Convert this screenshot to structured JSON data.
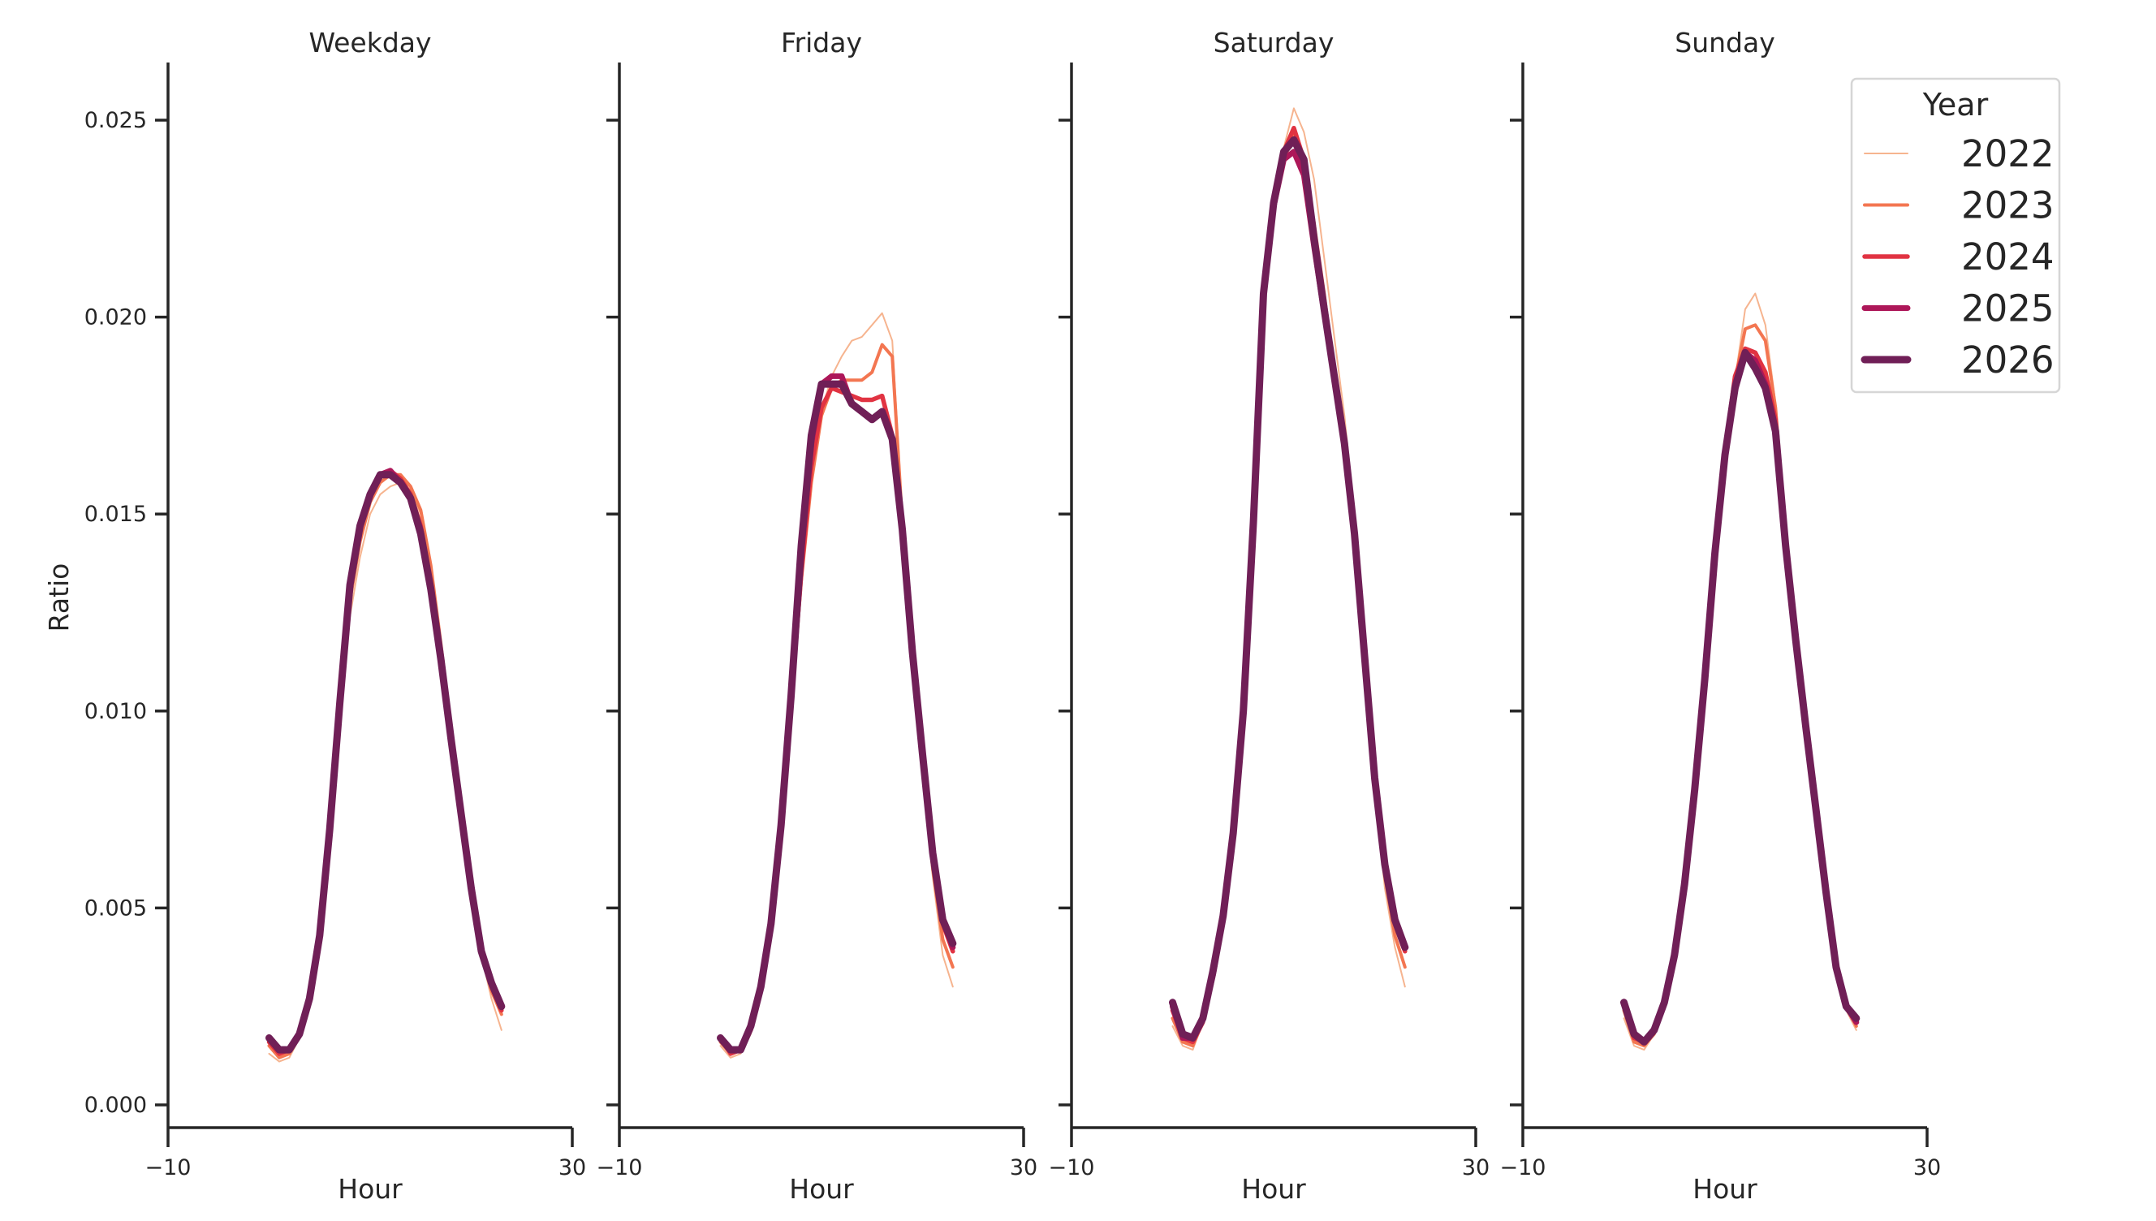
{
  "figure": {
    "ylabel": "Ratio",
    "xlabel": "Hour",
    "legend_title": "Year"
  },
  "legend": {
    "title": "Year",
    "items": [
      {
        "label": "2022",
        "color": "#f6b48f",
        "width": 2
      },
      {
        "label": "2023",
        "color": "#f37651",
        "width": 4
      },
      {
        "label": "2024",
        "color": "#e13342",
        "width": 5.5
      },
      {
        "label": "2025",
        "color": "#ad1759",
        "width": 7
      },
      {
        "label": "2026",
        "color": "#701f57",
        "width": 9
      }
    ]
  },
  "panels": [
    {
      "title": "Weekday"
    },
    {
      "title": "Friday"
    },
    {
      "title": "Saturday"
    },
    {
      "title": "Sunday"
    }
  ],
  "axes": {
    "xticks": [
      "−10",
      "30"
    ],
    "yticks": [
      "0.000",
      "0.005",
      "0.010",
      "0.015",
      "0.020",
      "0.025"
    ]
  },
  "chart_data": {
    "type": "line",
    "title": "",
    "xlabel": "Hour",
    "ylabel": "Ratio",
    "xlim": [
      -10,
      30
    ],
    "ylim": [
      0,
      0.0265
    ],
    "xticks": [
      -10,
      30
    ],
    "yticks": [
      0.0,
      0.005,
      0.01,
      0.015,
      0.02,
      0.025
    ],
    "grid": false,
    "legend_position": "upper right (inside Sunday panel)",
    "legend_title": "Year",
    "facets": [
      "Weekday",
      "Friday",
      "Saturday",
      "Sunday"
    ],
    "x": [
      0,
      1,
      2,
      3,
      4,
      5,
      6,
      7,
      8,
      9,
      10,
      11,
      12,
      13,
      14,
      15,
      16,
      17,
      18,
      19,
      20,
      21,
      22,
      23
    ],
    "panels": [
      {
        "title": "Weekday",
        "series": [
          {
            "name": "2022",
            "values": [
              0.0013,
              0.0011,
              0.0012,
              0.0017,
              0.0026,
              0.0041,
              0.0064,
              0.0095,
              0.0124,
              0.0139,
              0.015,
              0.0155,
              0.0157,
              0.0158,
              0.0156,
              0.015,
              0.0136,
              0.0117,
              0.0096,
              0.0076,
              0.0055,
              0.0038,
              0.0027,
              0.0019
            ]
          },
          {
            "name": "2023",
            "values": [
              0.0015,
              0.0012,
              0.0013,
              0.0018,
              0.0027,
              0.0042,
              0.0066,
              0.0098,
              0.0128,
              0.0143,
              0.0153,
              0.0158,
              0.016,
              0.016,
              0.0157,
              0.0151,
              0.0137,
              0.0117,
              0.0096,
              0.0076,
              0.0056,
              0.0039,
              0.0029,
              0.0023
            ]
          },
          {
            "name": "2024",
            "values": [
              0.0016,
              0.0013,
              0.0014,
              0.0018,
              0.0027,
              0.0043,
              0.0068,
              0.0101,
              0.0131,
              0.0146,
              0.0155,
              0.016,
              0.0161,
              0.0159,
              0.0155,
              0.0147,
              0.0132,
              0.0114,
              0.0094,
              0.0075,
              0.0055,
              0.0039,
              0.003,
              0.0024
            ]
          },
          {
            "name": "2025",
            "values": [
              0.0017,
              0.0014,
              0.0014,
              0.0018,
              0.0027,
              0.0043,
              0.0069,
              0.0102,
              0.0132,
              0.0147,
              0.0155,
              0.016,
              0.0161,
              0.0158,
              0.0154,
              0.0146,
              0.0131,
              0.0113,
              0.0093,
              0.0074,
              0.0055,
              0.0039,
              0.0031,
              0.0025
            ]
          },
          {
            "name": "2026",
            "values": [
              0.0017,
              0.0014,
              0.0014,
              0.0018,
              0.0027,
              0.0043,
              0.007,
              0.0102,
              0.0132,
              0.0147,
              0.0155,
              0.016,
              0.016,
              0.0158,
              0.0154,
              0.0145,
              0.0131,
              0.0113,
              0.0093,
              0.0074,
              0.0055,
              0.0039,
              0.0031,
              0.0025
            ]
          }
        ]
      },
      {
        "title": "Friday",
        "series": [
          {
            "name": "2022",
            "values": [
              0.0015,
              0.0012,
              0.0013,
              0.0018,
              0.0028,
              0.0044,
              0.0068,
              0.01,
              0.0132,
              0.0158,
              0.0176,
              0.0185,
              0.019,
              0.0194,
              0.0195,
              0.0198,
              0.0201,
              0.0194,
              0.015,
              0.0115,
              0.0085,
              0.0058,
              0.0038,
              0.003
            ]
          },
          {
            "name": "2023",
            "values": [
              0.0016,
              0.0013,
              0.0014,
              0.0019,
              0.0029,
              0.0045,
              0.0069,
              0.0101,
              0.0133,
              0.0158,
              0.0175,
              0.0182,
              0.0184,
              0.0184,
              0.0184,
              0.0186,
              0.0193,
              0.019,
              0.0148,
              0.0114,
              0.0086,
              0.006,
              0.0042,
              0.0035
            ]
          },
          {
            "name": "2024",
            "values": [
              0.0017,
              0.0013,
              0.0014,
              0.0019,
              0.003,
              0.0046,
              0.007,
              0.0102,
              0.0135,
              0.0162,
              0.0177,
              0.0182,
              0.0181,
              0.018,
              0.0179,
              0.0179,
              0.018,
              0.017,
              0.0147,
              0.0115,
              0.0088,
              0.0063,
              0.0046,
              0.0039
            ]
          },
          {
            "name": "2025",
            "values": [
              0.0017,
              0.0014,
              0.0014,
              0.002,
              0.003,
              0.0046,
              0.0071,
              0.0104,
              0.014,
              0.0168,
              0.0183,
              0.0185,
              0.0185,
              0.0178,
              0.0176,
              0.0174,
              0.0176,
              0.0169,
              0.0146,
              0.0115,
              0.0089,
              0.0064,
              0.0047,
              0.004
            ]
          },
          {
            "name": "2026",
            "values": [
              0.0017,
              0.0014,
              0.0014,
              0.002,
              0.003,
              0.0046,
              0.0071,
              0.0104,
              0.0142,
              0.017,
              0.0183,
              0.0183,
              0.0183,
              0.0178,
              0.0176,
              0.0174,
              0.0176,
              0.0169,
              0.0146,
              0.0115,
              0.0089,
              0.0064,
              0.0047,
              0.0041
            ]
          }
        ]
      },
      {
        "title": "Saturday",
        "series": [
          {
            "name": "2022",
            "values": [
              0.002,
              0.0015,
              0.0014,
              0.0021,
              0.0032,
              0.0048,
              0.007,
              0.0102,
              0.015,
              0.0205,
              0.0228,
              0.0243,
              0.0253,
              0.0247,
              0.0235,
              0.0215,
              0.0195,
              0.0175,
              0.015,
              0.0115,
              0.008,
              0.0055,
              0.004,
              0.003
            ]
          },
          {
            "name": "2023",
            "values": [
              0.0022,
              0.0016,
              0.0015,
              0.0021,
              0.0032,
              0.0047,
              0.0069,
              0.01,
              0.0148,
              0.0205,
              0.0228,
              0.024,
              0.0246,
              0.024,
              0.0224,
              0.0206,
              0.0186,
              0.0168,
              0.0145,
              0.0112,
              0.008,
              0.0058,
              0.0043,
              0.0035
            ]
          },
          {
            "name": "2024",
            "values": [
              0.0024,
              0.0017,
              0.0016,
              0.0021,
              0.0033,
              0.0048,
              0.0069,
              0.01,
              0.0148,
              0.0206,
              0.0229,
              0.0242,
              0.0248,
              0.024,
              0.0222,
              0.0203,
              0.0185,
              0.0168,
              0.0145,
              0.0113,
              0.0082,
              0.006,
              0.0046,
              0.0039
            ]
          },
          {
            "name": "2025",
            "values": [
              0.0025,
              0.0017,
              0.0017,
              0.0022,
              0.0033,
              0.0048,
              0.0069,
              0.01,
              0.0148,
              0.0206,
              0.0228,
              0.024,
              0.0242,
              0.0236,
              0.0218,
              0.0201,
              0.0185,
              0.0168,
              0.0145,
              0.0114,
              0.0083,
              0.0061,
              0.0047,
              0.004
            ]
          },
          {
            "name": "2026",
            "values": [
              0.0026,
              0.0018,
              0.0017,
              0.0022,
              0.0034,
              0.0048,
              0.0069,
              0.01,
              0.0148,
              0.0206,
              0.0229,
              0.0242,
              0.0245,
              0.024,
              0.022,
              0.0202,
              0.0185,
              0.0168,
              0.0145,
              0.0114,
              0.0083,
              0.0061,
              0.0047,
              0.004
            ]
          }
        ]
      },
      {
        "title": "Sunday",
        "series": [
          {
            "name": "2022",
            "values": [
              0.0022,
              0.0015,
              0.0014,
              0.0018,
              0.0026,
              0.0038,
              0.0056,
              0.008,
              0.0108,
              0.014,
              0.0165,
              0.0184,
              0.0202,
              0.0206,
              0.0198,
              0.0178,
              0.0146,
              0.0118,
              0.0096,
              0.0075,
              0.0054,
              0.0035,
              0.0024,
              0.0019
            ]
          },
          {
            "name": "2023",
            "values": [
              0.0024,
              0.0016,
              0.0015,
              0.0018,
              0.0026,
              0.0038,
              0.0056,
              0.008,
              0.0108,
              0.014,
              0.0166,
              0.0184,
              0.0197,
              0.0198,
              0.0194,
              0.0177,
              0.0146,
              0.0118,
              0.0096,
              0.0075,
              0.0054,
              0.0035,
              0.0025,
              0.002
            ]
          },
          {
            "name": "2024",
            "values": [
              0.0025,
              0.0017,
              0.0016,
              0.0019,
              0.0026,
              0.0038,
              0.0056,
              0.008,
              0.0108,
              0.014,
              0.0166,
              0.0185,
              0.0192,
              0.0191,
              0.0186,
              0.0174,
              0.0144,
              0.0118,
              0.0096,
              0.0075,
              0.0054,
              0.0035,
              0.0025,
              0.0021
            ]
          },
          {
            "name": "2025",
            "values": [
              0.0026,
              0.0018,
              0.0016,
              0.0019,
              0.0026,
              0.0038,
              0.0056,
              0.008,
              0.0108,
              0.014,
              0.0165,
              0.0183,
              0.0191,
              0.0189,
              0.0183,
              0.0172,
              0.0143,
              0.0118,
              0.0096,
              0.0075,
              0.0054,
              0.0035,
              0.0025,
              0.0021
            ]
          },
          {
            "name": "2026",
            "values": [
              0.0026,
              0.0018,
              0.0016,
              0.0019,
              0.0026,
              0.0038,
              0.0056,
              0.008,
              0.0108,
              0.014,
              0.0165,
              0.0182,
              0.0191,
              0.0187,
              0.0182,
              0.0171,
              0.0142,
              0.0118,
              0.0096,
              0.0075,
              0.0054,
              0.0035,
              0.0025,
              0.0022
            ]
          }
        ]
      }
    ]
  }
}
